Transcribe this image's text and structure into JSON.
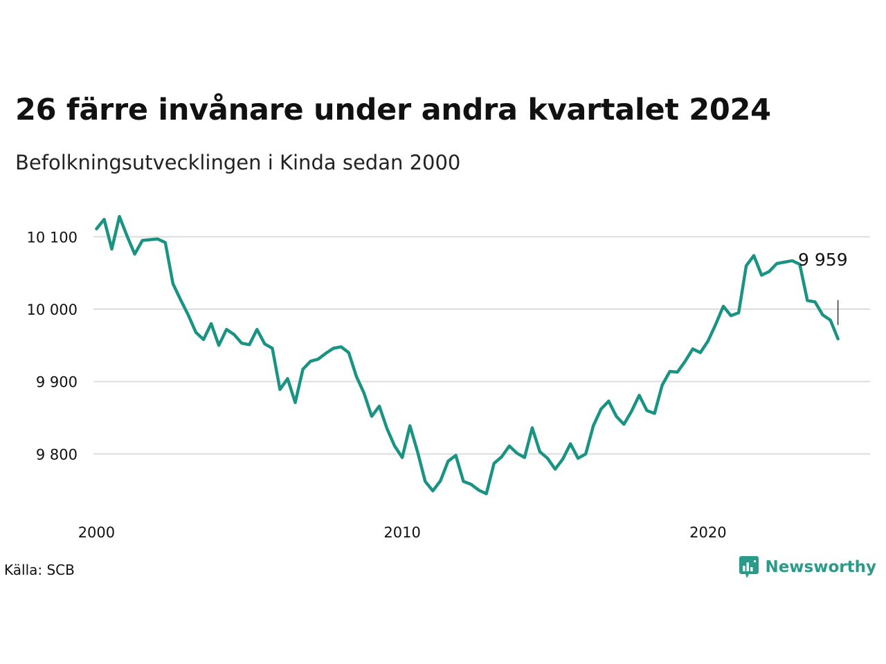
{
  "header": {
    "title": "26 färre invånare under andra kvartalet 2024",
    "subtitle": "Befolkningsutvecklingen i Kinda sedan 2000"
  },
  "footer": {
    "source": "Källa: SCB",
    "brand": "Newsworthy",
    "brand_icon": "newsworthy-logo-icon"
  },
  "colors": {
    "line": "#1a9482",
    "grid": "#dddddd",
    "brand": "#2a9a89"
  },
  "chart_data": {
    "type": "line",
    "title": "26 färre invånare under andra kvartalet 2024",
    "subtitle": "Befolkningsutvecklingen i Kinda sedan 2000",
    "x_ticks": [
      2000,
      2010,
      2020
    ],
    "x_tick_labels": [
      "2000",
      "2010",
      "2020"
    ],
    "y_ticks": [
      9800,
      9900,
      10000,
      10100
    ],
    "y_tick_labels": [
      "9 800",
      "9 900",
      "10 000",
      "10 100"
    ],
    "xlim": [
      1999.9,
      2025.3
    ],
    "ylim": [
      9720,
      10150
    ],
    "grid": true,
    "annotation": {
      "label": "9 959",
      "x": 2024.25,
      "y": 9959
    },
    "series": [
      {
        "x_start": 2000.0,
        "x_step": 0.25,
        "values": [
          10111,
          10124,
          10083,
          10128,
          10101,
          10076,
          10095,
          10096,
          10097,
          10092,
          10035,
          10013,
          9992,
          9968,
          9958,
          9980,
          9950,
          9972,
          9965,
          9953,
          9951,
          9972,
          9952,
          9946,
          9889,
          9904,
          9871,
          9917,
          9928,
          9931,
          9939,
          9946,
          9948,
          9940,
          9907,
          9884,
          9852,
          9866,
          9835,
          9811,
          9795,
          9839,
          9803,
          9762,
          9749,
          9763,
          9790,
          9798,
          9762,
          9758,
          9750,
          9745,
          9787,
          9796,
          9811,
          9801,
          9795,
          9836,
          9803,
          9794,
          9779,
          9793,
          9814,
          9794,
          9800,
          9839,
          9862,
          9873,
          9852,
          9841,
          9859,
          9881,
          9860,
          9856,
          9895,
          9914,
          9913,
          9928,
          9945,
          9940,
          9956,
          9979,
          10004,
          9991,
          9995,
          10060,
          10074,
          10047,
          10052,
          10063,
          10065,
          10067,
          10062,
          10012,
          10010,
          9992,
          9985,
          9959
        ]
      }
    ]
  }
}
